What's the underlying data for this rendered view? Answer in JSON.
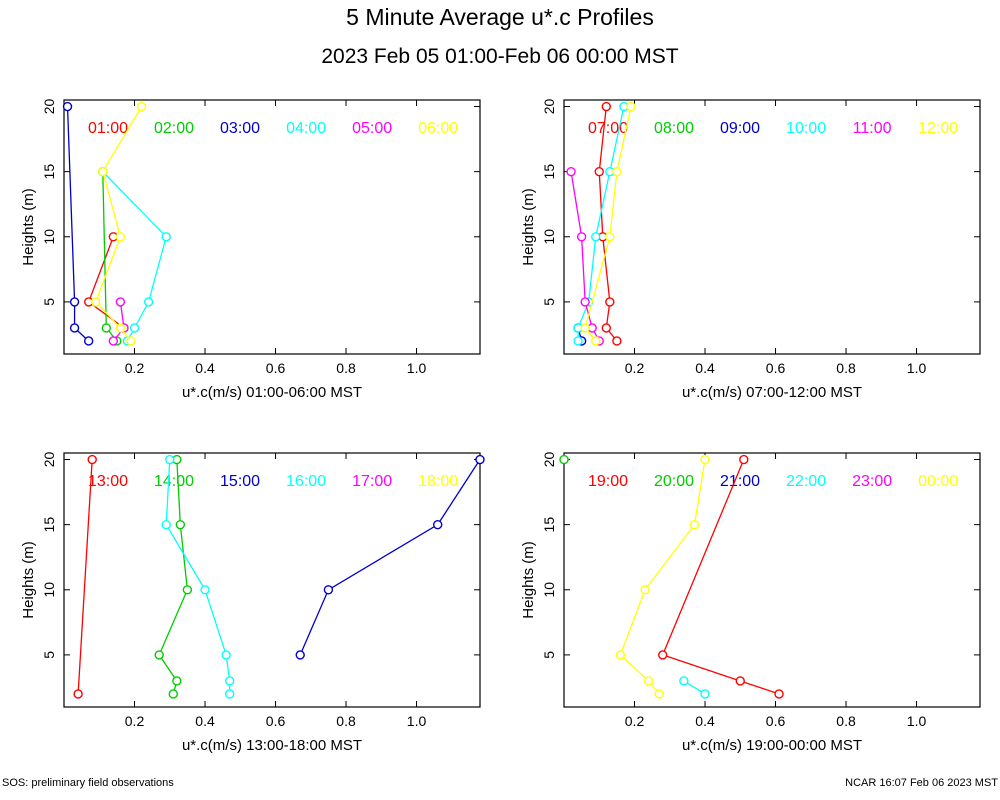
{
  "title": "5 Minute Average u*.c Profiles",
  "subtitle": "2023 Feb 05 01:00-Feb 06 00:00 MST",
  "footer_left": "SOS: preliminary field observations",
  "footer_right": "NCAR 16:07 Feb 06 2023 MST",
  "colors": [
    "#ff0000",
    "#00cc00",
    "#0000cc",
    "#00ffff",
    "#ff00ff",
    "#ffff00"
  ],
  "chart_data": [
    {
      "type": "line",
      "xlabel": "u*.c(m/s) 01:00-06:00 MST",
      "ylabel": "Heights (m)",
      "xlim": [
        0,
        1.18
      ],
      "ylim": [
        1,
        20.5
      ],
      "xticks": [
        0.2,
        0.4,
        0.6,
        0.8,
        1.0
      ],
      "yticks": [
        5,
        10,
        15,
        20
      ],
      "series": [
        {
          "name": "01:00",
          "points": [
            [
              0.17,
              3
            ],
            [
              0.07,
              5
            ],
            [
              0.14,
              10
            ]
          ]
        },
        {
          "name": "02:00",
          "points": [
            [
              0.15,
              2
            ],
            [
              0.12,
              3
            ],
            [
              0.11,
              15
            ]
          ]
        },
        {
          "name": "03:00",
          "points": [
            [
              0.07,
              2
            ],
            [
              0.03,
              3
            ],
            [
              0.03,
              5
            ],
            [
              0.01,
              20
            ]
          ]
        },
        {
          "name": "04:00",
          "points": [
            [
              0.18,
              2
            ],
            [
              0.2,
              3
            ],
            [
              0.24,
              5
            ],
            [
              0.29,
              10
            ],
            [
              0.11,
              15
            ]
          ]
        },
        {
          "name": "05:00",
          "points": [
            [
              0.14,
              2
            ],
            [
              0.17,
              3
            ],
            [
              0.16,
              5
            ]
          ]
        },
        {
          "name": "06:00",
          "points": [
            [
              0.19,
              2
            ],
            [
              0.16,
              3
            ],
            [
              0.09,
              5
            ],
            [
              0.16,
              10
            ],
            [
              0.11,
              15
            ],
            [
              0.22,
              20
            ]
          ]
        }
      ]
    },
    {
      "type": "line",
      "xlabel": "u*.c(m/s) 07:00-12:00 MST",
      "ylabel": "Heights (m)",
      "xlim": [
        0,
        1.18
      ],
      "ylim": [
        1,
        20.5
      ],
      "xticks": [
        0.2,
        0.4,
        0.6,
        0.8,
        1.0
      ],
      "yticks": [
        5,
        10,
        15,
        20
      ],
      "series": [
        {
          "name": "07:00",
          "points": [
            [
              0.15,
              2
            ],
            [
              0.12,
              3
            ],
            [
              0.13,
              5
            ],
            [
              0.11,
              10
            ],
            [
              0.1,
              15
            ],
            [
              0.12,
              20
            ]
          ]
        },
        {
          "name": "08:00",
          "points": [
            [
              0.05,
              2
            ],
            [
              0.04,
              3
            ]
          ]
        },
        {
          "name": "09:00",
          "points": [
            [
              0.05,
              2
            ],
            [
              0.04,
              3
            ]
          ]
        },
        {
          "name": "10:00",
          "points": [
            [
              0.04,
              2
            ],
            [
              0.04,
              3
            ],
            [
              0.07,
              5
            ],
            [
              0.09,
              10
            ],
            [
              0.13,
              15
            ],
            [
              0.17,
              20
            ]
          ]
        },
        {
          "name": "11:00",
          "points": [
            [
              0.1,
              2
            ],
            [
              0.08,
              3
            ],
            [
              0.06,
              5
            ],
            [
              0.05,
              10
            ],
            [
              0.02,
              15
            ]
          ]
        },
        {
          "name": "12:00",
          "points": [
            [
              0.09,
              2
            ],
            [
              0.06,
              3
            ],
            [
              0.13,
              10
            ],
            [
              0.15,
              15
            ],
            [
              0.19,
              20
            ]
          ]
        }
      ]
    },
    {
      "type": "line",
      "xlabel": "u*.c(m/s) 13:00-18:00 MST",
      "ylabel": "Heights (m)",
      "xlim": [
        0,
        1.18
      ],
      "ylim": [
        1,
        20.5
      ],
      "xticks": [
        0.2,
        0.4,
        0.6,
        0.8,
        1.0
      ],
      "yticks": [
        5,
        10,
        15,
        20
      ],
      "series": [
        {
          "name": "13:00",
          "points": [
            [
              0.04,
              2
            ],
            [
              0.08,
              20
            ]
          ]
        },
        {
          "name": "14:00",
          "points": [
            [
              0.31,
              2
            ],
            [
              0.32,
              3
            ],
            [
              0.27,
              5
            ],
            [
              0.35,
              10
            ],
            [
              0.33,
              15
            ],
            [
              0.32,
              20
            ]
          ]
        },
        {
          "name": "15:00",
          "points": [
            [
              0.67,
              5
            ],
            [
              0.75,
              10
            ],
            [
              1.06,
              15
            ],
            [
              1.18,
              20
            ]
          ]
        },
        {
          "name": "16:00",
          "points": [
            [
              0.47,
              2
            ],
            [
              0.47,
              3
            ],
            [
              0.46,
              5
            ],
            [
              0.4,
              10
            ],
            [
              0.29,
              15
            ],
            [
              0.3,
              20
            ]
          ]
        },
        {
          "name": "17:00",
          "points": []
        },
        {
          "name": "18:00",
          "points": []
        }
      ]
    },
    {
      "type": "line",
      "xlabel": "u*.c(m/s) 19:00-00:00 MST",
      "ylabel": "Heights (m)",
      "xlim": [
        0,
        1.18
      ],
      "ylim": [
        1,
        20.5
      ],
      "xticks": [
        0.2,
        0.4,
        0.6,
        0.8,
        1.0
      ],
      "yticks": [
        5,
        10,
        15,
        20
      ],
      "series": [
        {
          "name": "19:00",
          "points": [
            [
              0.61,
              2
            ],
            [
              0.5,
              3
            ],
            [
              0.28,
              5
            ],
            [
              0.51,
              20
            ]
          ]
        },
        {
          "name": "20:00",
          "points": [
            [
              0.0,
              20
            ]
          ]
        },
        {
          "name": "21:00",
          "points": []
        },
        {
          "name": "22:00",
          "points": [
            [
              0.4,
              2
            ],
            [
              0.34,
              3
            ]
          ]
        },
        {
          "name": "23:00",
          "points": []
        },
        {
          "name": "00:00",
          "points": [
            [
              0.27,
              2
            ],
            [
              0.24,
              3
            ],
            [
              0.16,
              5
            ],
            [
              0.23,
              10
            ],
            [
              0.37,
              15
            ],
            [
              0.4,
              20
            ]
          ]
        }
      ]
    }
  ]
}
